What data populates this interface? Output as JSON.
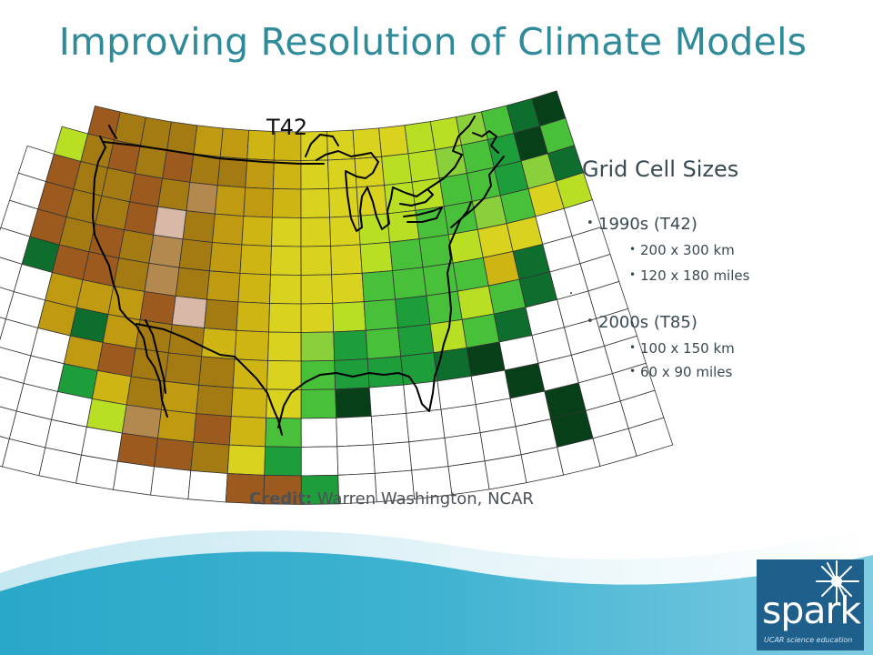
{
  "slide": {
    "title": "Improving Resolution of Climate Models"
  },
  "map": {
    "grid_label": "T42",
    "colors": {
      "white": "#ffffff",
      "brown": "#9c5a1e",
      "tan": "#b3894f",
      "pink": "#d8b9a8",
      "olive": "#a47a12",
      "gold": "#c09a10",
      "mustard": "#cfb514",
      "yellow": "#d9d21e",
      "lime": "#b8df24",
      "lightgreen": "#8ad03a",
      "green": "#48c03a",
      "medgreen": "#1e9e3a",
      "darkgreen": "#0e6e2e",
      "forest": "#063f18"
    }
  },
  "legend": {
    "heading": "Grid Cell Sizes",
    "groups": [
      {
        "label": "1990s (T42)",
        "items": [
          "200 x 300 km",
          "120 x 180 miles"
        ]
      },
      {
        "label": "2000s (T85)",
        "items": [
          "100 x 150 km",
          "60 x 90 miles"
        ]
      }
    ]
  },
  "credit": {
    "label": "Credit:",
    "text": "Warren Washington, NCAR"
  },
  "logo": {
    "word": "spark",
    "tagline": "UCAR science education",
    "colors": {
      "box": "#1e5f8c",
      "text": "#ffffff"
    }
  }
}
